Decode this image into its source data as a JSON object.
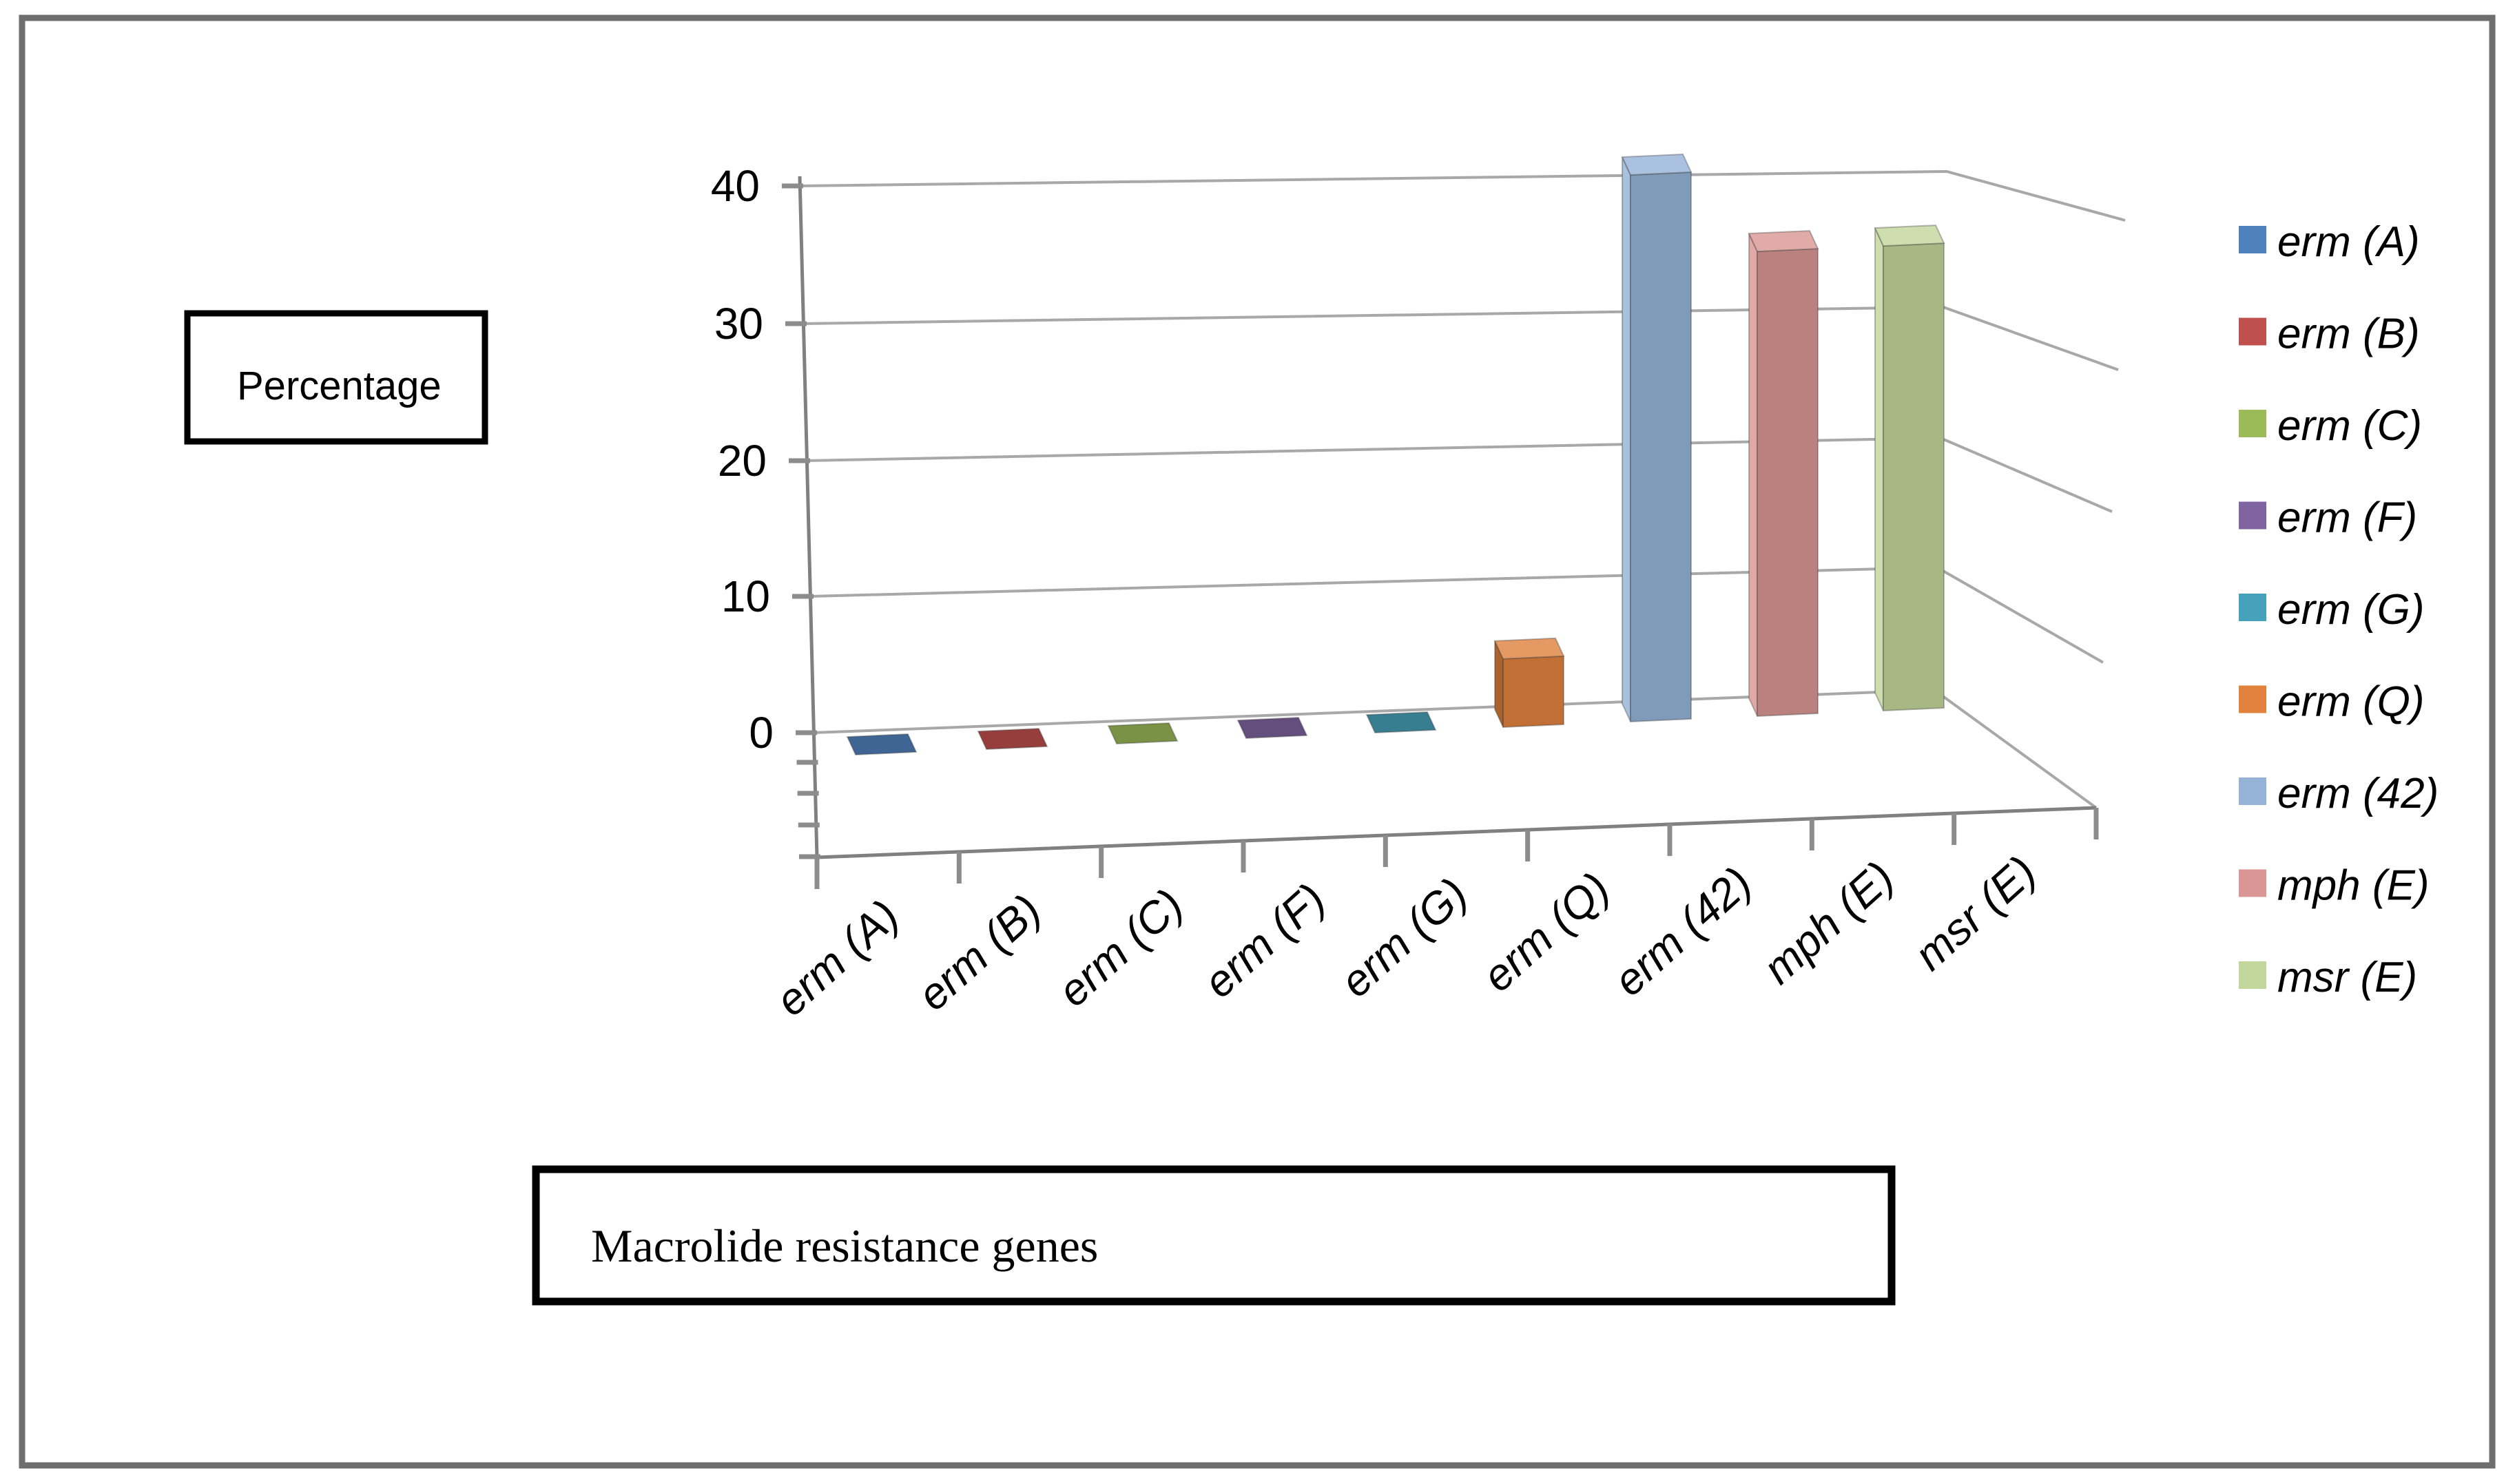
{
  "labels": {
    "y_axis_title": "Percentage",
    "x_axis_title": "Macrolide resistance genes"
  },
  "chart_data": {
    "type": "bar",
    "effect": "3d",
    "categories": [
      "erm (A)",
      "erm (B)",
      "erm (C)",
      "erm (F)",
      "erm (G)",
      "erm (Q)",
      "erm (42)",
      "mph (E)",
      "msr (E)"
    ],
    "values": [
      0,
      0,
      0,
      0,
      0,
      5,
      40,
      34,
      34
    ],
    "point_colors": [
      "#4F81BD",
      "#C0504D",
      "#9BBB59",
      "#8064A2",
      "#46A2BA",
      "#E0813C",
      "#95B3D7",
      "#D99694",
      "#C3D69B"
    ],
    "title": "",
    "xlabel": "Macrolide resistance genes",
    "ylabel": "Percentage",
    "yticks": [
      0,
      10,
      20,
      30,
      40
    ],
    "ylim": [
      0,
      40
    ],
    "grid": true,
    "legend_position": "right",
    "legend_items": [
      "erm (A)",
      "erm (B)",
      "erm (C)",
      "erm (F)",
      "erm (G)",
      "erm (Q)",
      "erm (42)",
      "mph (E)",
      "msr (E)"
    ]
  },
  "style_colors": {
    "gridline": "#A8A8A8",
    "axis": "#808080",
    "tick": "#8C8C8C",
    "figure_border": "#6E6E6E",
    "box_border": "#000000"
  }
}
